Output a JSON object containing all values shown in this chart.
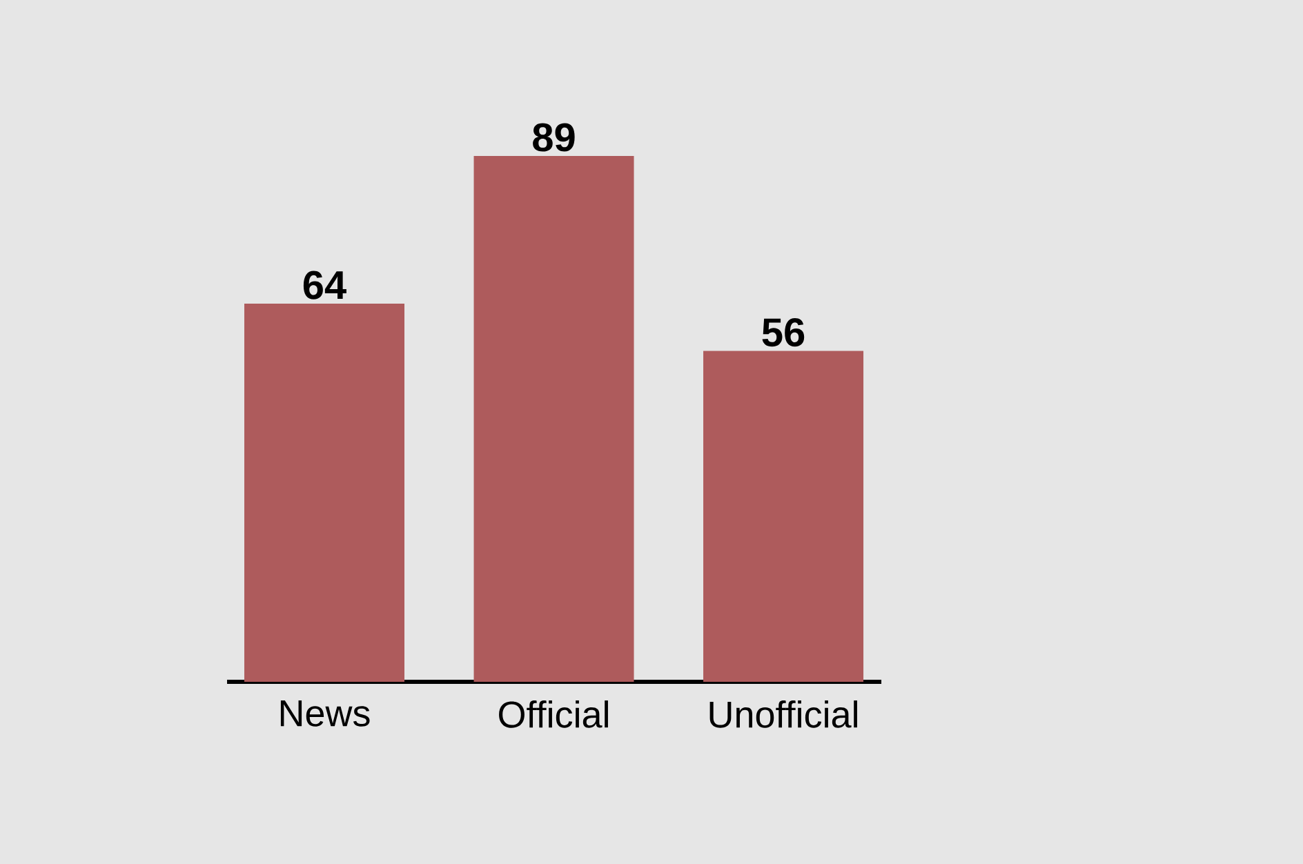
{
  "chart_data": {
    "type": "bar",
    "categories": [
      "News",
      "Official",
      "Unofficial"
    ],
    "values": [
      64,
      89,
      56
    ],
    "color": "#ae5b5c",
    "data_labels": true
  }
}
